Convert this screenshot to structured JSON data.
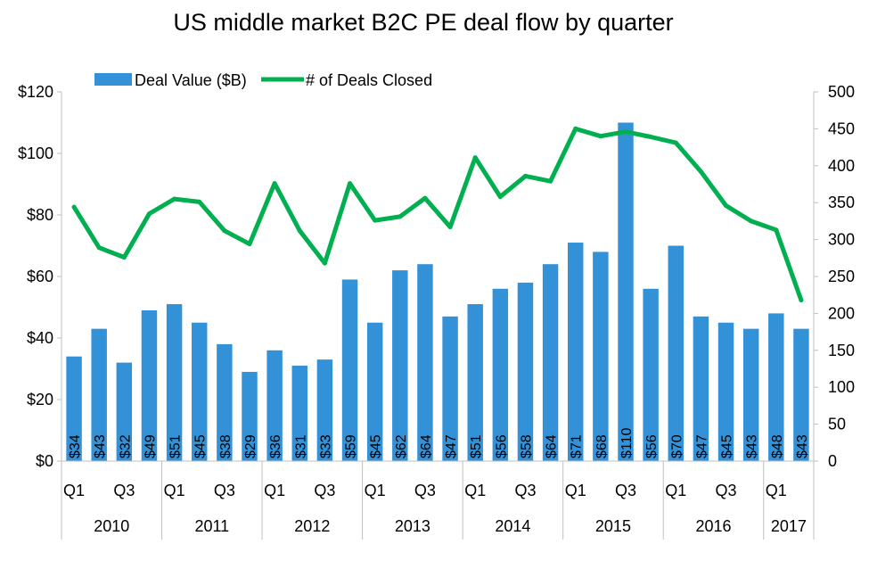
{
  "chart_data": {
    "type": "bar",
    "title": "US middle market B2C PE deal flow by quarter",
    "categories": [
      "2010 Q1",
      "2010 Q2",
      "2010 Q3",
      "2010 Q4",
      "2011 Q1",
      "2011 Q2",
      "2011 Q3",
      "2011 Q4",
      "2012 Q1",
      "2012 Q2",
      "2012 Q3",
      "2012 Q4",
      "2013 Q1",
      "2013 Q2",
      "2013 Q3",
      "2013 Q4",
      "2014 Q1",
      "2014 Q2",
      "2014 Q3",
      "2014 Q4",
      "2015 Q1",
      "2015 Q2",
      "2015 Q3",
      "2015 Q4",
      "2016 Q1",
      "2016 Q2",
      "2016 Q3",
      "2016 Q4",
      "2017 Q1",
      "2017 Q2"
    ],
    "x_tick_labels": [
      "Q1",
      "",
      "Q3",
      "",
      "Q1",
      "",
      "Q3",
      "",
      "Q1",
      "",
      "Q3",
      "",
      "Q1",
      "",
      "Q3",
      "",
      "Q1",
      "",
      "Q3",
      "",
      "Q1",
      "",
      "Q3",
      "",
      "Q1",
      "",
      "Q3",
      "",
      "Q1",
      ""
    ],
    "years": [
      {
        "label": "2010",
        "quarters": 4
      },
      {
        "label": "2011",
        "quarters": 4
      },
      {
        "label": "2012",
        "quarters": 4
      },
      {
        "label": "2013",
        "quarters": 4
      },
      {
        "label": "2014",
        "quarters": 4
      },
      {
        "label": "2015",
        "quarters": 4
      },
      {
        "label": "2016",
        "quarters": 4
      },
      {
        "label": "2017",
        "quarters": 2
      }
    ],
    "series": [
      {
        "name": "Deal Value ($B)",
        "type": "bar",
        "axis": "left",
        "color": "#3391d8",
        "values": [
          34,
          43,
          32,
          49,
          51,
          45,
          38,
          29,
          36,
          31,
          33,
          59,
          45,
          62,
          64,
          47,
          51,
          56,
          58,
          64,
          71,
          68,
          110,
          56,
          70,
          47,
          45,
          43,
          48,
          43
        ],
        "labels": [
          "$34",
          "$43",
          "$32",
          "$49",
          "$51",
          "$45",
          "$38",
          "$29",
          "$36",
          "$31",
          "$33",
          "$59",
          "$45",
          "$62",
          "$64",
          "$47",
          "$51",
          "$56",
          "$58",
          "$64",
          "$71",
          "$68",
          "$110",
          "$56",
          "$70",
          "$47",
          "$45",
          "$43",
          "$48",
          "$43"
        ]
      },
      {
        "name": "# of Deals Closed",
        "type": "line",
        "axis": "right",
        "color": "#00b050",
        "values": [
          344,
          289,
          276,
          335,
          355,
          351,
          312,
          294,
          376,
          312,
          268,
          376,
          326,
          331,
          356,
          317,
          411,
          358,
          386,
          379,
          450,
          440,
          446,
          439,
          431,
          392,
          346,
          325,
          313,
          218
        ]
      }
    ],
    "y_left": {
      "min": 0,
      "max": 120,
      "step": 20,
      "tick_labels": [
        "$0",
        "$20",
        "$40",
        "$60",
        "$80",
        "$100",
        "$120"
      ]
    },
    "y_right": {
      "min": 0,
      "max": 500,
      "step": 50,
      "tick_labels": [
        "0",
        "50",
        "100",
        "150",
        "200",
        "250",
        "300",
        "350",
        "400",
        "450",
        "500"
      ]
    },
    "grid": false,
    "legend_position": "top-left"
  }
}
